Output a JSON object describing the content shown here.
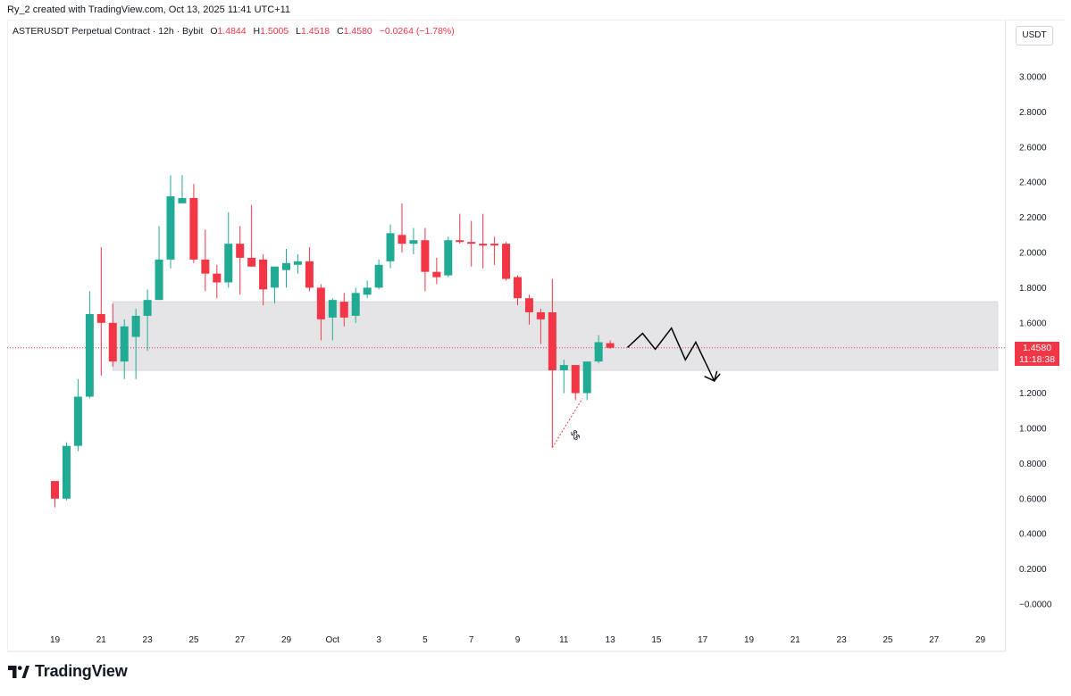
{
  "header": {
    "creator": "Ry_2 created with TradingView.com, Oct 13, 2025 11:41 UTC+11",
    "symbol": "ASTERUSDT Perpetual Contract · 12h · Bybit",
    "ohlc": [
      {
        "key": "O",
        "value": "1.4844"
      },
      {
        "key": "H",
        "value": "1.5005"
      },
      {
        "key": "L",
        "value": "1.4518"
      },
      {
        "key": "C",
        "value": "1.4580"
      }
    ],
    "change": "−0.0264 (−1.78%)"
  },
  "price_scale": {
    "unit": "USDT",
    "current_price": "1.4580",
    "countdown": "11:18:38"
  },
  "branding": {
    "logo_text": "TradingView"
  },
  "colors": {
    "up": "#22ab94",
    "down": "#f23645",
    "zone": "#e0e1e3",
    "axis_text": "#131722",
    "background": "#ffffff",
    "drawing": "#000000"
  },
  "annotations": {
    "sweep_label": "$$"
  },
  "chart_data": {
    "type": "candlestick",
    "interval": "12h",
    "ylim": [
      -0.05,
      3.1
    ],
    "y_ticks": [
      "3.0000",
      "2.8000",
      "2.6000",
      "2.4000",
      "2.2000",
      "2.0000",
      "1.8000",
      "1.6000",
      "1.4000",
      "1.2000",
      "1.0000",
      "0.8000",
      "0.6000",
      "0.4000",
      "0.2000",
      "−0.0000"
    ],
    "y_tick_values": [
      3.0,
      2.8,
      2.6,
      2.4,
      2.2,
      2.0,
      1.8,
      1.6,
      1.4,
      1.2,
      1.0,
      0.8,
      0.6,
      0.4,
      0.2,
      0.0
    ],
    "x_ticks": [
      {
        "label": "19",
        "t": 0
      },
      {
        "label": "21",
        "t": 4
      },
      {
        "label": "23",
        "t": 8
      },
      {
        "label": "25",
        "t": 12
      },
      {
        "label": "27",
        "t": 16
      },
      {
        "label": "29",
        "t": 20
      },
      {
        "label": "Oct",
        "t": 24
      },
      {
        "label": "3",
        "t": 28
      },
      {
        "label": "5",
        "t": 32
      },
      {
        "label": "7",
        "t": 36
      },
      {
        "label": "9",
        "t": 40
      },
      {
        "label": "11",
        "t": 44
      },
      {
        "label": "13",
        "t": 48
      },
      {
        "label": "15",
        "t": 52
      },
      {
        "label": "17",
        "t": 56
      },
      {
        "label": "19",
        "t": 60
      },
      {
        "label": "21",
        "t": 64
      },
      {
        "label": "23",
        "t": 68
      },
      {
        "label": "25",
        "t": 72
      },
      {
        "label": "27",
        "t": 76
      },
      {
        "label": "29",
        "t": 80
      }
    ],
    "candles": [
      {
        "t": 0,
        "o": 0.7,
        "h": 0.7,
        "l": 0.55,
        "c": 0.6
      },
      {
        "t": 1,
        "o": 0.6,
        "h": 0.92,
        "l": 0.59,
        "c": 0.9
      },
      {
        "t": 2,
        "o": 0.9,
        "h": 1.28,
        "l": 0.87,
        "c": 1.18
      },
      {
        "t": 3,
        "o": 1.18,
        "h": 1.78,
        "l": 1.17,
        "c": 1.65
      },
      {
        "t": 4,
        "o": 1.65,
        "h": 2.03,
        "l": 1.3,
        "c": 1.6
      },
      {
        "t": 5,
        "o": 1.6,
        "h": 1.71,
        "l": 1.35,
        "c": 1.38
      },
      {
        "t": 6,
        "o": 1.38,
        "h": 1.62,
        "l": 1.28,
        "c": 1.58
      },
      {
        "t": 7,
        "o": 1.52,
        "h": 1.68,
        "l": 1.28,
        "c": 1.64
      },
      {
        "t": 8,
        "o": 1.64,
        "h": 1.79,
        "l": 1.44,
        "c": 1.73
      },
      {
        "t": 9,
        "o": 1.73,
        "h": 2.15,
        "l": 1.73,
        "c": 1.96
      },
      {
        "t": 10,
        "o": 1.96,
        "h": 2.44,
        "l": 1.91,
        "c": 2.32
      },
      {
        "t": 11,
        "o": 2.28,
        "h": 2.44,
        "l": 2.28,
        "c": 2.31
      },
      {
        "t": 12,
        "o": 2.31,
        "h": 2.39,
        "l": 1.94,
        "c": 1.96
      },
      {
        "t": 13,
        "o": 1.96,
        "h": 2.13,
        "l": 1.78,
        "c": 1.88
      },
      {
        "t": 14,
        "o": 1.88,
        "h": 1.93,
        "l": 1.74,
        "c": 1.83
      },
      {
        "t": 15,
        "o": 1.83,
        "h": 2.23,
        "l": 1.8,
        "c": 2.05
      },
      {
        "t": 16,
        "o": 2.05,
        "h": 2.15,
        "l": 1.76,
        "c": 1.97
      },
      {
        "t": 17,
        "o": 1.97,
        "h": 2.27,
        "l": 1.92,
        "c": 1.92
      },
      {
        "t": 18,
        "o": 1.96,
        "h": 1.99,
        "l": 1.7,
        "c": 1.79
      },
      {
        "t": 19,
        "o": 1.8,
        "h": 1.91,
        "l": 1.71,
        "c": 1.92
      },
      {
        "t": 20,
        "o": 1.9,
        "h": 2.02,
        "l": 1.8,
        "c": 1.94
      },
      {
        "t": 21,
        "o": 1.93,
        "h": 1.99,
        "l": 1.88,
        "c": 1.95
      },
      {
        "t": 22,
        "o": 1.95,
        "h": 2.03,
        "l": 1.78,
        "c": 1.8
      },
      {
        "t": 23,
        "o": 1.8,
        "h": 1.82,
        "l": 1.5,
        "c": 1.62
      },
      {
        "t": 24,
        "o": 1.63,
        "h": 1.74,
        "l": 1.5,
        "c": 1.73
      },
      {
        "t": 25,
        "o": 1.72,
        "h": 1.77,
        "l": 1.58,
        "c": 1.63
      },
      {
        "t": 26,
        "o": 1.64,
        "h": 1.8,
        "l": 1.6,
        "c": 1.77
      },
      {
        "t": 27,
        "o": 1.76,
        "h": 1.84,
        "l": 1.74,
        "c": 1.8
      },
      {
        "t": 28,
        "o": 1.8,
        "h": 1.96,
        "l": 1.79,
        "c": 1.93
      },
      {
        "t": 29,
        "o": 1.95,
        "h": 2.16,
        "l": 1.91,
        "c": 2.11
      },
      {
        "t": 30,
        "o": 2.1,
        "h": 2.28,
        "l": 2.0,
        "c": 2.05
      },
      {
        "t": 31,
        "o": 2.05,
        "h": 2.14,
        "l": 1.99,
        "c": 2.07
      },
      {
        "t": 32,
        "o": 2.07,
        "h": 2.14,
        "l": 1.78,
        "c": 1.89
      },
      {
        "t": 33,
        "o": 1.89,
        "h": 1.97,
        "l": 1.82,
        "c": 1.86
      },
      {
        "t": 34,
        "o": 1.87,
        "h": 2.09,
        "l": 1.86,
        "c": 2.07
      },
      {
        "t": 35,
        "o": 2.07,
        "h": 2.22,
        "l": 2.05,
        "c": 2.06
      },
      {
        "t": 36,
        "o": 2.06,
        "h": 2.18,
        "l": 1.92,
        "c": 2.05
      },
      {
        "t": 37,
        "o": 2.05,
        "h": 2.22,
        "l": 1.91,
        "c": 2.04
      },
      {
        "t": 38,
        "o": 2.05,
        "h": 2.09,
        "l": 1.93,
        "c": 2.04
      },
      {
        "t": 39,
        "o": 2.05,
        "h": 2.06,
        "l": 1.84,
        "c": 1.85
      },
      {
        "t": 40,
        "o": 1.86,
        "h": 1.87,
        "l": 1.7,
        "c": 1.74
      },
      {
        "t": 41,
        "o": 1.74,
        "h": 1.76,
        "l": 1.59,
        "c": 1.66
      },
      {
        "t": 42,
        "o": 1.66,
        "h": 1.68,
        "l": 1.48,
        "c": 1.62
      },
      {
        "t": 43,
        "o": 1.66,
        "h": 1.85,
        "l": 0.89,
        "c": 1.33
      },
      {
        "t": 44,
        "o": 1.33,
        "h": 1.39,
        "l": 1.2,
        "c": 1.36
      },
      {
        "t": 45,
        "o": 1.36,
        "h": 1.36,
        "l": 1.16,
        "c": 1.2
      },
      {
        "t": 46,
        "o": 1.2,
        "h": 1.38,
        "l": 1.16,
        "c": 1.38
      },
      {
        "t": 47,
        "o": 1.38,
        "h": 1.53,
        "l": 1.37,
        "c": 1.49
      },
      {
        "t": 48,
        "o": 1.4844,
        "h": 1.5005,
        "l": 1.4518,
        "c": 1.458
      }
    ],
    "zone": {
      "t_start": 5,
      "t_end": 81.5,
      "y_low": 1.33,
      "y_high": 1.72
    },
    "sweep_line": {
      "from": {
        "t": 43,
        "y": 0.89
      },
      "to": {
        "t": 45.6,
        "y": 1.17
      }
    },
    "projection_path": [
      {
        "t": 49.5,
        "y": 1.46
      },
      {
        "t": 50.8,
        "y": 1.54
      },
      {
        "t": 51.9,
        "y": 1.45
      },
      {
        "t": 53.3,
        "y": 1.57
      },
      {
        "t": 54.5,
        "y": 1.39
      },
      {
        "t": 55.4,
        "y": 1.49
      },
      {
        "t": 57.0,
        "y": 1.27
      },
      {
        "t": 57.5,
        "y": 1.31
      }
    ],
    "current_price_value": 1.458
  }
}
